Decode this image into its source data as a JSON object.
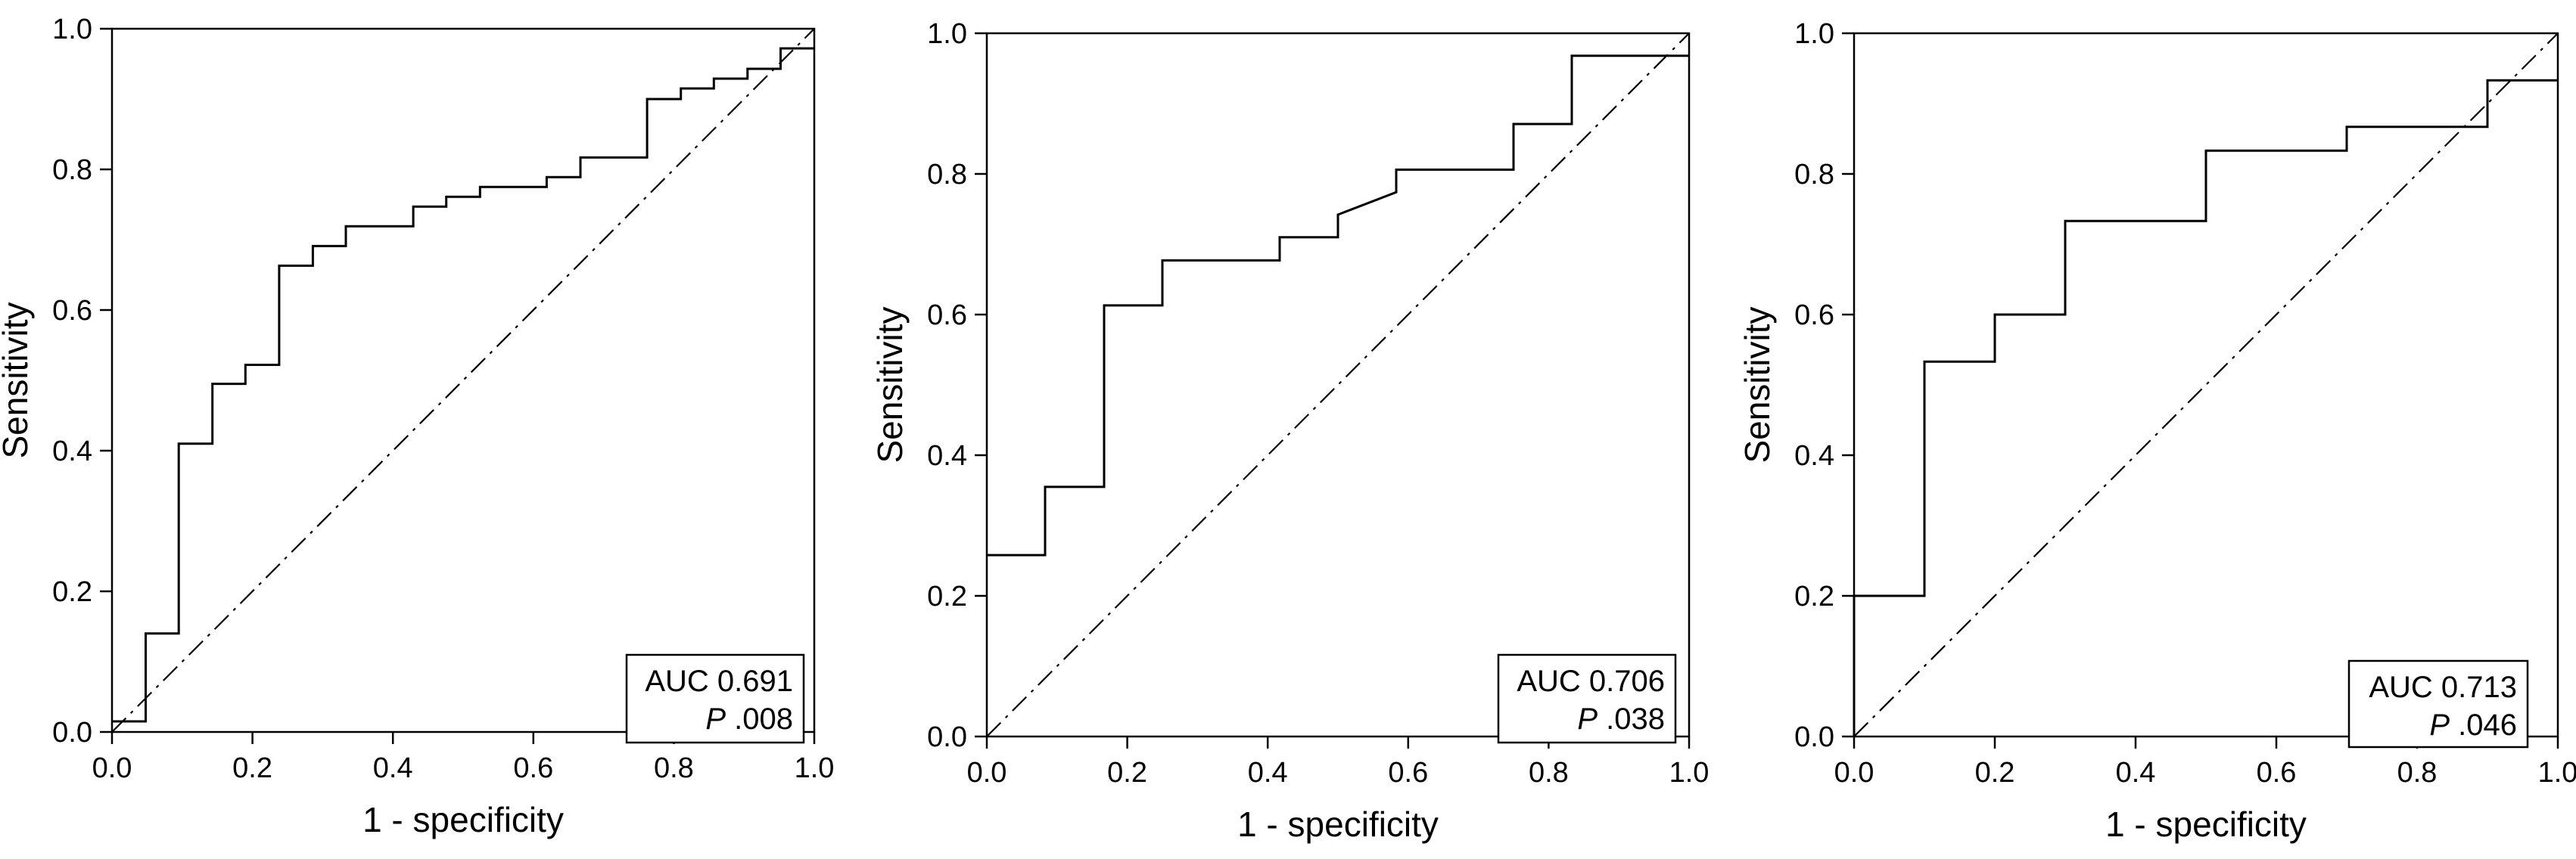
{
  "chart_data": [
    {
      "type": "line",
      "xlabel": "1 - specificity",
      "ylabel": "Sensitivity",
      "xlim": [
        0,
        1
      ],
      "ylim": [
        0,
        1
      ],
      "x_ticks": [
        "0.0",
        "0.2",
        "0.4",
        "0.6",
        "0.8",
        "1.0"
      ],
      "y_ticks": [
        "0.0",
        "0.2",
        "0.4",
        "0.6",
        "0.8",
        "1.0"
      ],
      "annotation": {
        "auc": "AUC 0.691",
        "p_italic": "P",
        "p_value": " .008"
      },
      "legend_position": "bottom-right",
      "grid": false,
      "reference_line": {
        "x": [
          0,
          1
        ],
        "y": [
          0,
          1
        ],
        "style": "dash-dot"
      },
      "series": [
        {
          "x": [
            0.0,
            0.048,
            0.048,
            0.095,
            0.095,
            0.143,
            0.143,
            0.19,
            0.19,
            0.238,
            0.238,
            0.286,
            0.286,
            0.333,
            0.333,
            0.429,
            0.429,
            0.476,
            0.476,
            0.524,
            0.524,
            0.619,
            0.619,
            0.667,
            0.667,
            0.762,
            0.762,
            0.81,
            0.81,
            0.857,
            0.857,
            0.905,
            0.905,
            0.952,
            0.952,
            1.0
          ],
          "y": [
            0.015,
            0.015,
            0.14,
            0.14,
            0.41,
            0.41,
            0.495,
            0.495,
            0.522,
            0.522,
            0.663,
            0.663,
            0.691,
            0.691,
            0.719,
            0.719,
            0.747,
            0.747,
            0.761,
            0.761,
            0.775,
            0.775,
            0.789,
            0.789,
            0.817,
            0.817,
            0.9,
            0.9,
            0.915,
            0.915,
            0.929,
            0.929,
            0.943,
            0.943,
            0.972,
            0.972
          ]
        }
      ]
    },
    {
      "type": "line",
      "xlabel": "1 - specificity",
      "ylabel": "Sensitivity",
      "xlim": [
        0,
        1
      ],
      "ylim": [
        0,
        1
      ],
      "x_ticks": [
        "0.0",
        "0.2",
        "0.4",
        "0.6",
        "0.8",
        "1.0"
      ],
      "y_ticks": [
        "0.0",
        "0.2",
        "0.4",
        "0.6",
        "0.8",
        "1.0"
      ],
      "annotation": {
        "auc": "AUC 0.706",
        "p_italic": "P",
        "p_value": " .038"
      },
      "legend_position": "bottom-right",
      "grid": false,
      "reference_line": {
        "x": [
          0,
          1
        ],
        "y": [
          0,
          1
        ],
        "style": "dash-dot"
      },
      "series": [
        {
          "x": [
            0.0,
            0.083,
            0.083,
            0.167,
            0.167,
            0.25,
            0.25,
            0.417,
            0.417,
            0.5,
            0.5,
            0.583,
            0.583,
            0.75,
            0.75,
            0.833,
            0.833,
            1.0
          ],
          "y": [
            0.258,
            0.258,
            0.355,
            0.355,
            0.613,
            0.613,
            0.677,
            0.677,
            0.71,
            0.71,
            0.742,
            0.774,
            0.806,
            0.806,
            0.871,
            0.871,
            0.968,
            0.968
          ]
        }
      ]
    },
    {
      "type": "line",
      "xlabel": "1 - specificity",
      "ylabel": "Sensitivity",
      "xlim": [
        0,
        1
      ],
      "ylim": [
        0,
        1
      ],
      "x_ticks": [
        "0.0",
        "0.2",
        "0.4",
        "0.6",
        "0.8",
        "1.0"
      ],
      "y_ticks": [
        "0.0",
        "0.2",
        "0.4",
        "0.6",
        "0.8",
        "1.0"
      ],
      "annotation": {
        "auc": "AUC 0.713",
        "p_italic": "P",
        "p_value": " .046"
      },
      "legend_position": "bottom-right",
      "grid": false,
      "reference_line": {
        "x": [
          0,
          1
        ],
        "y": [
          0,
          1
        ],
        "style": "dash-dot"
      },
      "series": [
        {
          "x": [
            0.0,
            0.0,
            0.1,
            0.1,
            0.2,
            0.2,
            0.3,
            0.3,
            0.5,
            0.5,
            0.7,
            0.7,
            0.9,
            0.9,
            1.0
          ],
          "y": [
            0.0,
            0.2,
            0.2,
            0.533,
            0.533,
            0.6,
            0.6,
            0.733,
            0.733,
            0.833,
            0.833,
            0.867,
            0.867,
            0.933,
            0.933
          ]
        }
      ]
    }
  ]
}
